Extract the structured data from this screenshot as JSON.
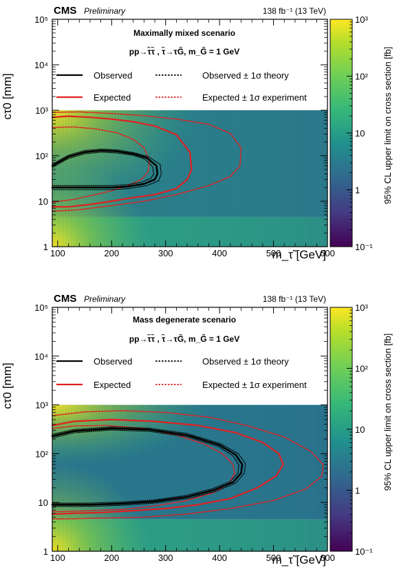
{
  "chart_data": [
    {
      "type": "heatmap",
      "experiment": "CMS",
      "status": "Preliminary",
      "lumi": "138 fb⁻¹ (13 TeV)",
      "scenario": "Maximally mixed scenario",
      "process": "pp→τ̃τ̃ , τ̃→τG̃, m_G̃ = 1 GeV",
      "xlabel": "m_τ̃ [GeV]",
      "ylabel": "cτ0 [mm]",
      "zlabel": "95% CL upper limit on cross section [fb]",
      "xlim": [
        90,
        600
      ],
      "ylim": [
        1,
        100000
      ],
      "yscale": "log",
      "zlim": [
        0.1,
        1000
      ],
      "zscale": "log",
      "xticks": [
        "100",
        "200",
        "300",
        "400",
        "500",
        "600"
      ],
      "yticks": [
        "1",
        "10",
        "10²",
        "10³",
        "10⁴",
        "10⁵"
      ],
      "zticks": [
        "10⁻¹",
        "1",
        "10",
        "10²",
        "10³"
      ],
      "legend": [
        {
          "label": "Observed",
          "style": "solid",
          "color": "#000000"
        },
        {
          "label": "Observed ± 1σ theory",
          "style": "dotted",
          "color": "#000000"
        },
        {
          "label": "Expected",
          "style": "solid",
          "color": "#e02020"
        },
        {
          "label": "Expected ± 1σ experiment",
          "style": "dotted",
          "color": "#e02020"
        }
      ],
      "contours": [
        {
          "name": "Expected",
          "role": "expected",
          "x": [
            90,
            120,
            160,
            200,
            240,
            280,
            320,
            345,
            348,
            340,
            320,
            280,
            240,
            200,
            160,
            120,
            90
          ],
          "y": [
            700,
            740,
            700,
            640,
            560,
            450,
            290,
            120,
            50,
            30,
            19,
            14,
            12,
            10,
            8.5,
            7.5,
            7.5
          ]
        },
        {
          "name": "Expected +1σ",
          "role": "expected_band",
          "x": [
            90,
            140,
            200,
            260,
            320,
            380,
            420,
            440,
            438,
            420,
            380,
            320,
            260,
            200,
            140,
            90
          ],
          "y": [
            900,
            920,
            850,
            760,
            640,
            490,
            310,
            150,
            60,
            35,
            22,
            14,
            10,
            8,
            6.5,
            6
          ]
        },
        {
          "name": "Expected -1σ",
          "role": "expected_band",
          "x": [
            90,
            130,
            170,
            210,
            240,
            260,
            270,
            268,
            255,
            230,
            200,
            170,
            130,
            90
          ],
          "y": [
            420,
            430,
            390,
            320,
            230,
            150,
            80,
            45,
            30,
            22,
            17,
            14,
            11,
            9.5
          ]
        },
        {
          "name": "Observed",
          "role": "observed",
          "x": [
            90,
            120,
            150,
            180,
            210,
            240,
            265,
            283,
            285,
            280,
            260,
            230,
            200,
            170,
            140,
            110,
            90
          ],
          "y": [
            60,
            95,
            120,
            130,
            125,
            110,
            90,
            60,
            40,
            30,
            24,
            21,
            20,
            20,
            20,
            20,
            20
          ]
        },
        {
          "name": "Observed +1σ",
          "role": "observed_band",
          "x": [
            90,
            120,
            150,
            180,
            210,
            240,
            268,
            290,
            292,
            287,
            265,
            232,
            200,
            168,
            136,
            106,
            90
          ],
          "y": [
            65,
            103,
            130,
            140,
            135,
            118,
            96,
            64,
            40,
            28,
            22,
            19,
            18,
            18,
            18,
            18,
            18
          ]
        },
        {
          "name": "Observed -1σ",
          "role": "observed_band",
          "x": [
            90,
            120,
            150,
            180,
            210,
            240,
            262,
            276,
            278,
            273,
            255,
            228,
            200,
            172,
            144,
            114,
            90
          ],
          "y": [
            55,
            87,
            110,
            120,
            115,
            102,
            84,
            57,
            40,
            32,
            26,
            23,
            22,
            22,
            22,
            22,
            22
          ]
        }
      ]
    },
    {
      "type": "heatmap",
      "experiment": "CMS",
      "status": "Preliminary",
      "lumi": "138 fb⁻¹ (13 TeV)",
      "scenario": "Mass degenerate scenario",
      "process": "pp→τ̃τ̃ , τ̃→τG̃, m_G̃ = 1 GeV",
      "xlabel": "m_τ̃ [GeV]",
      "ylabel": "cτ0 [mm]",
      "zlabel": "95% CL upper limit on cross section [fb]",
      "xlim": [
        90,
        600
      ],
      "ylim": [
        1,
        100000
      ],
      "yscale": "log",
      "zlim": [
        0.1,
        1000
      ],
      "zscale": "log",
      "xticks": [
        "100",
        "200",
        "300",
        "400",
        "500",
        "600"
      ],
      "yticks": [
        "1",
        "10",
        "10²",
        "10³",
        "10⁴",
        "10⁵"
      ],
      "zticks": [
        "10⁻¹",
        "1",
        "10",
        "10²",
        "10³"
      ],
      "legend": [
        {
          "label": "Observed",
          "style": "solid",
          "color": "#000000"
        },
        {
          "label": "Observed ± 1σ theory",
          "style": "dotted",
          "color": "#000000"
        },
        {
          "label": "Expected",
          "style": "solid",
          "color": "#e02020"
        },
        {
          "label": "Expected ± 1σ experiment",
          "style": "dotted",
          "color": "#e02020"
        }
      ],
      "contours": [
        {
          "name": "Expected",
          "role": "expected",
          "x": [
            90,
            130,
            200,
            280,
            360,
            430,
            480,
            510,
            518,
            505,
            470,
            420,
            360,
            300,
            240,
            180,
            130,
            100,
            90
          ],
          "y": [
            380,
            460,
            500,
            460,
            380,
            270,
            170,
            100,
            60,
            35,
            20,
            12,
            9,
            7.5,
            6.8,
            6.2,
            6,
            5.8,
            5.8
          ]
        },
        {
          "name": "Expected +1σ",
          "role": "expected_band",
          "x": [
            90,
            150,
            220,
            300,
            380,
            450,
            520,
            570,
            592,
            590,
            560,
            500,
            420,
            340,
            260,
            180,
            120,
            90
          ],
          "y": [
            600,
            720,
            760,
            700,
            560,
            380,
            220,
            110,
            60,
            35,
            19,
            11,
            7.5,
            5.8,
            5,
            4.8,
            4.6,
            4.6
          ]
        },
        {
          "name": "Expected -1σ",
          "role": "expected_band",
          "x": [
            90,
            130,
            190,
            260,
            320,
            370,
            405,
            425,
            428,
            418,
            390,
            340,
            280,
            220,
            160,
            110,
            90
          ],
          "y": [
            330,
            370,
            380,
            330,
            240,
            160,
            100,
            60,
            40,
            25,
            16,
            11,
            8.5,
            7.2,
            6.8,
            6.5,
            6.5
          ]
        },
        {
          "name": "Observed",
          "role": "observed",
          "x": [
            90,
            130,
            200,
            270,
            340,
            400,
            430,
            442,
            440,
            425,
            390,
            340,
            280,
            220,
            160,
            120,
            90
          ],
          "y": [
            230,
            290,
            330,
            310,
            240,
            150,
            95,
            60,
            40,
            26,
            18,
            13,
            10.5,
            9.5,
            9,
            9,
            9
          ]
        },
        {
          "name": "Observed +1σ",
          "role": "observed_band",
          "x": [
            90,
            130,
            200,
            270,
            340,
            402,
            435,
            448,
            446,
            430,
            394,
            344,
            283,
            222,
            161,
            120,
            90
          ],
          "y": [
            250,
            312,
            354,
            333,
            259,
            160,
            100,
            62,
            40,
            25,
            17,
            12.2,
            9.8,
            8.8,
            8.3,
            8.3,
            8.3
          ]
        },
        {
          "name": "Observed -1σ",
          "role": "observed_band",
          "x": [
            90,
            130,
            200,
            270,
            340,
            398,
            425,
            436,
            434,
            420,
            386,
            336,
            277,
            218,
            159,
            120,
            90
          ],
          "y": [
            210,
            268,
            306,
            287,
            222,
            140,
            90,
            58,
            40,
            27,
            19,
            13.8,
            11.2,
            10.2,
            9.7,
            9.7,
            9.7
          ]
        }
      ]
    }
  ]
}
